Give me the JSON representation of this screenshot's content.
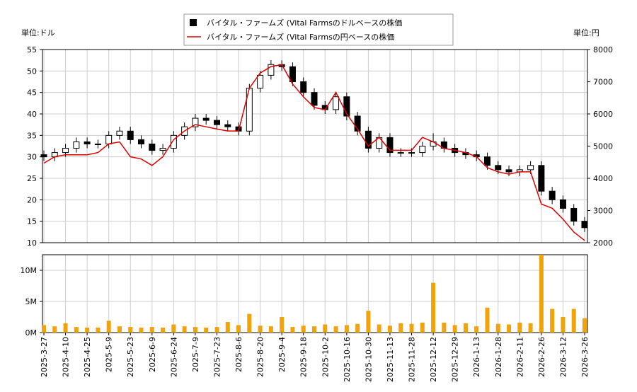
{
  "chart_data": [
    {
      "type": "candlestick",
      "y_unit_label": "単位:ドル",
      "y2_unit_label": "単位:円",
      "categories": [
        "2025-3-27",
        null,
        "2025-4-10",
        null,
        "2025-4-25",
        null,
        "2025-5-9",
        null,
        "2025-5-23",
        null,
        "2025-6-9",
        null,
        "2025-6-24",
        null,
        "2025-7-9",
        null,
        "2025-7-23",
        null,
        "2025-8-6",
        null,
        "2025-8-20",
        null,
        "2025-9-4",
        null,
        "2025-9-18",
        null,
        "2025-10-2",
        null,
        "2025-10-16",
        null,
        "2025-10-30",
        null,
        "2025-11-13",
        null,
        "2025-11-28",
        null,
        "2025-12-12",
        null,
        "2025-12-29",
        null,
        "2026-1-13",
        null,
        "2026-1-28",
        null,
        "2026-2-11",
        null,
        "2026-2-26",
        null,
        "2026-3-12",
        null,
        "2026-3-26"
      ],
      "series": [
        {
          "name": "バイタル・ファームズ (Vital Farmsのドルベースの株価",
          "color": "#000000",
          "open": [
            30.5,
            30,
            31,
            32,
            33.5,
            33,
            33,
            35,
            36,
            34,
            33,
            31.5,
            32,
            35,
            37,
            39,
            38.5,
            37.5,
            37,
            36,
            46,
            49,
            51.5,
            51,
            47.5,
            45,
            42,
            41,
            44,
            39.5,
            36,
            32,
            34.5,
            31,
            31,
            31,
            32.5,
            33.5,
            32,
            31,
            30.5,
            30,
            28,
            27,
            26.5,
            27,
            28,
            22,
            20,
            18,
            15
          ],
          "high": [
            31.5,
            32,
            33,
            34.5,
            34.5,
            34,
            36,
            37,
            37,
            35,
            34,
            33,
            36,
            38,
            40,
            40,
            39.5,
            38.5,
            38,
            47,
            50,
            52.5,
            52.5,
            52,
            48.5,
            46,
            43,
            45,
            45,
            40.5,
            37,
            35.5,
            35.5,
            32,
            32,
            33.5,
            35.5,
            34.5,
            33,
            32,
            31.5,
            31,
            29,
            28,
            28,
            29,
            29,
            23,
            21,
            19,
            16
          ],
          "low": [
            29,
            29,
            30,
            31,
            32,
            32,
            32,
            34,
            33,
            32,
            30.5,
            30.5,
            31,
            34,
            36,
            37.5,
            36.5,
            36,
            35,
            35,
            45,
            48,
            50,
            46.5,
            44,
            41,
            40,
            40,
            38.5,
            35,
            31,
            31,
            30,
            30,
            30,
            30,
            31.5,
            31,
            30,
            29.5,
            29,
            27,
            26,
            25.5,
            25.5,
            26,
            21,
            19,
            17,
            14,
            12.5
          ],
          "close": [
            30,
            31,
            32,
            33.5,
            33,
            33,
            35,
            36,
            34,
            33,
            31.5,
            32,
            35,
            37,
            39,
            38.5,
            37.5,
            37,
            36,
            46,
            49,
            51.5,
            51,
            47.5,
            45,
            42,
            41,
            44,
            39.5,
            36,
            32,
            34.5,
            31,
            31,
            31,
            32.5,
            33.5,
            32,
            31,
            30.5,
            30,
            28,
            27,
            26.5,
            27,
            28,
            22,
            20,
            18,
            15,
            13.5
          ]
        },
        {
          "name": "バイタル・ファームズ (Vital Farmsの円ベースの株価",
          "color": "#e00000",
          "axis": "y2",
          "values": [
            4470,
            4670,
            4730,
            4730,
            4730,
            4800,
            5070,
            5130,
            4670,
            4600,
            4400,
            4670,
            5200,
            5470,
            5670,
            5600,
            5530,
            5470,
            5470,
            6800,
            7270,
            7470,
            7530,
            6930,
            6530,
            6200,
            6130,
            6670,
            6000,
            5530,
            5000,
            5270,
            4870,
            4870,
            4870,
            5270,
            5130,
            4930,
            4870,
            4800,
            4670,
            4330,
            4200,
            4130,
            4200,
            4200,
            3200,
            3070,
            2730,
            2330,
            2070
          ]
        }
      ],
      "ylim": [
        10,
        55
      ],
      "yticks": [
        10,
        15,
        20,
        25,
        30,
        35,
        40,
        45,
        50,
        55
      ],
      "y2lim": [
        2000,
        8000
      ],
      "y2ticks": [
        2000,
        3000,
        4000,
        5000,
        6000,
        7000,
        8000
      ],
      "grid": true
    },
    {
      "type": "bar",
      "color": "#f0a30a",
      "values": [
        1.2,
        1.0,
        1.5,
        0.9,
        0.8,
        0.8,
        1.9,
        1.0,
        0.9,
        0.8,
        0.9,
        0.8,
        1.3,
        1.0,
        0.9,
        0.8,
        0.9,
        1.7,
        1.2,
        3.0,
        1.1,
        1.0,
        2.5,
        0.9,
        1.1,
        1.0,
        1.3,
        1.0,
        1.2,
        1.4,
        3.5,
        1.3,
        1.1,
        1.5,
        1.4,
        1.6,
        8.0,
        1.6,
        1.2,
        1.5,
        1.0,
        4.0,
        1.4,
        1.3,
        1.6,
        1.5,
        12.5,
        3.8,
        2.5,
        3.8,
        2.3
      ],
      "ylim": [
        0,
        12.5
      ],
      "yticks": [
        {
          "value": 0,
          "label": "0M"
        },
        {
          "value": 5,
          "label": "5M"
        },
        {
          "value": 10,
          "label": "10M"
        }
      ],
      "grid": true
    }
  ]
}
